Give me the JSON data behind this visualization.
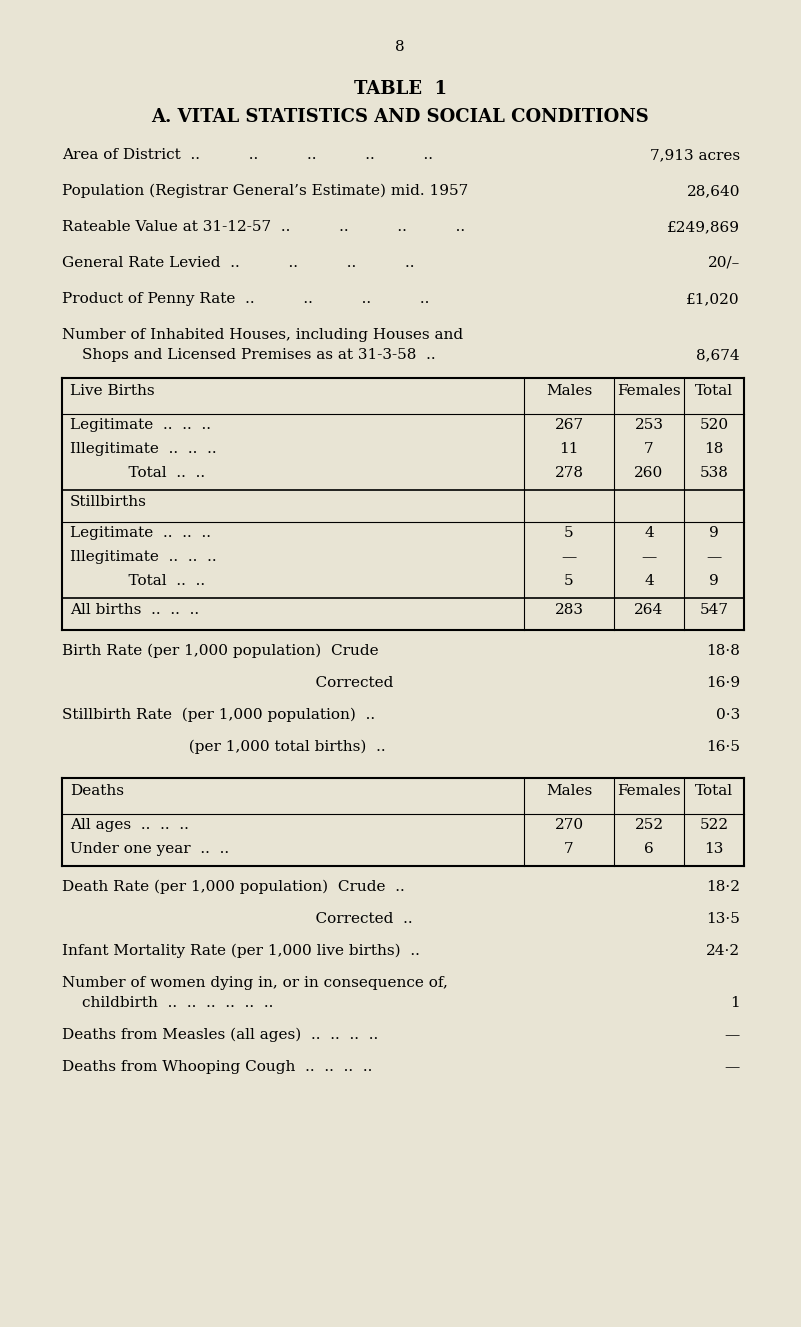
{
  "bg_color": "#e8e4d4",
  "page_number": "8",
  "title1": "TABLE  1",
  "title2": "A. VITAL STATISTICS AND SOCIAL CONDITIONS",
  "intro_rows": [
    {
      "label": "Area of District",
      "dots": "  ..          ..          ..          ..          ..",
      "value": "7,913 acres"
    },
    {
      "label": "Population (Registrar General’s Estimate) mid. 1957",
      "dots": "",
      "value": "28,640"
    },
    {
      "label": "Rateable Value at 31-12-57",
      "dots": "  ..          ..          ..          ..",
      "value": "£249,869"
    },
    {
      "label": "General Rate Levied",
      "dots": "  ..          ..          ..          ..",
      "value": "20/–"
    },
    {
      "label": "Product of Penny Rate",
      "dots": "  ..          ..          ..          ..",
      "value": "£1,020"
    }
  ],
  "houses_line1": "Number of Inhabited Houses, including Houses and",
  "houses_line2": "    Shops and Licensed Premises as at 31-3-58  ..",
  "houses_value": "8,674",
  "table1_header": [
    "Live Births",
    "Males",
    "Females",
    "Total"
  ],
  "table1_rows": [
    [
      "Legitimate  ..  ..  ..",
      "267",
      "253",
      "520"
    ],
    [
      "Illegitimate  ..  ..  ..",
      "11",
      "7",
      "18"
    ],
    [
      "            Total  ..  ..",
      "278",
      "260",
      "538"
    ]
  ],
  "stillbirths_header": "Stillbirths",
  "table2_rows": [
    [
      "Legitimate  ..  ..  ..",
      "5",
      "4",
      "9"
    ],
    [
      "Illegitimate  ..  ..  ..",
      "—",
      "—",
      "—"
    ],
    [
      "            Total  ..  ..",
      "5",
      "4",
      "9"
    ]
  ],
  "allbirths_row": [
    "All births  ..  ..  ..",
    "283",
    "264",
    "547"
  ],
  "rates1_line1_left": "Birth Rate (per 1,000 population)  Crude",
  "rates1_line1_val": "18·8",
  "rates1_line2_left": "                                                    Corrected",
  "rates1_line2_val": "16·9",
  "rates1_line3_left": "Stillbirth Rate  (per 1,000 population)  ..",
  "rates1_line3_val": "0·3",
  "rates1_line4_left": "                          (per 1,000 total births)  ..",
  "rates1_line4_val": "16·5",
  "table3_header": [
    "Deaths",
    "Males",
    "Females",
    "Total"
  ],
  "table3_rows": [
    [
      "All ages  ..  ..  ..",
      "270",
      "252",
      "522"
    ],
    [
      "Under one year  ..  ..",
      "7",
      "6",
      "13"
    ]
  ],
  "rates2_line1_left": "Death Rate (per 1,000 population)  Crude  ..",
  "rates2_line1_val": "18·2",
  "rates2_line2_left": "                                                    Corrected  ..",
  "rates2_line2_val": "13·5",
  "rates2_line3_left": "Infant Mortality Rate (per 1,000 live births)  ..",
  "rates2_line3_val": "24·2",
  "rates2_line4a": "Number of women dying in, or in consequence of,",
  "rates2_line4b": "        childbirth  ..  ..  ..  ..  ..  ..",
  "rates2_line4_val": "1",
  "rates2_line5_left": "Deaths from Measles (all ages)  ..  ..  ..  ..",
  "rates2_line5_val": "—",
  "rates2_line6_left": "Deaths from Whooping Cough  ..  ..  ..  ..",
  "rates2_line6_val": "—"
}
